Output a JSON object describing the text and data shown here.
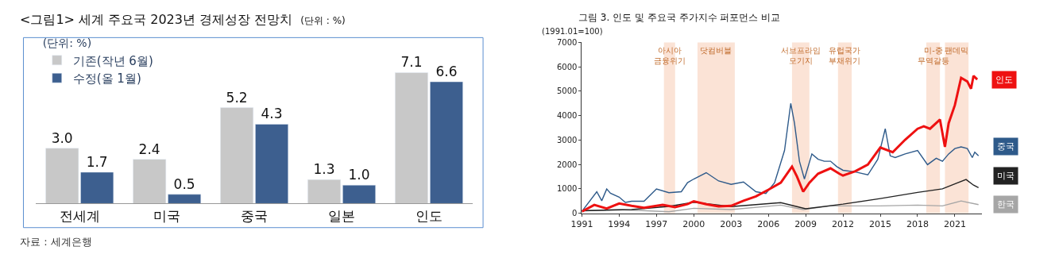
{
  "chart_data": [
    {
      "type": "bar",
      "title": "<그림1> 세계 주요국 2023년 경제성장 전망치",
      "subtitle": "(단위 : %)",
      "legend_title": "(단위: %)",
      "categories": [
        "전세계",
        "미국",
        "중국",
        "일본",
        "인도"
      ],
      "series": [
        {
          "name": "기존(작년 6월)",
          "color": "#c8c8c8",
          "values": [
            3.0,
            2.4,
            5.2,
            1.3,
            7.1
          ],
          "value_labels": [
            "3.0",
            "2.4",
            "5.2",
            "1.3",
            "7.1"
          ]
        },
        {
          "name": "수정(올 1월)",
          "color": "#3d5f8f",
          "values": [
            1.7,
            0.5,
            4.3,
            1.0,
            6.6
          ],
          "value_labels": [
            "1.7",
            "0.5",
            "4.3",
            "1.0",
            "6.6"
          ]
        }
      ],
      "legend": "top left",
      "grid": false,
      "annotations": [
        "자료 : 세계은행"
      ]
    },
    {
      "type": "line",
      "title": "그림 3. 인도 및 주요국 주가지수 퍼포먼스 비교",
      "ylabel": "(1991.01=100)",
      "xlim": [
        1991,
        2023.2
      ],
      "xticks": [
        1991,
        1994,
        1997,
        2000,
        2003,
        2006,
        2009,
        2012,
        2015,
        2018,
        2021
      ],
      "ylim": [
        0,
        7000
      ],
      "yticks": [
        0,
        1000,
        2000,
        3000,
        4000,
        5000,
        6000,
        7000
      ],
      "grid": false,
      "legend": "right",
      "marker": "none",
      "series": [
        {
          "name": "한국",
          "color": "#a6a6a6",
          "x": [
            1991,
            1994,
            1998,
            2000,
            2003,
            2007,
            2008.8,
            2011,
            2015,
            2018,
            2020,
            2021.5,
            2022.9
          ],
          "values": [
            100,
            150,
            60,
            200,
            150,
            330,
            150,
            300,
            300,
            330,
            300,
            500,
            350
          ]
        },
        {
          "name": "미국",
          "color": "#222222",
          "x": [
            1991,
            1995,
            1998,
            2000,
            2003,
            2007,
            2009,
            2012,
            2015,
            2018,
            2020,
            2021,
            2021.9,
            2022.5,
            2022.9
          ],
          "values": [
            100,
            150,
            280,
            450,
            270,
            430,
            180,
            370,
            600,
            850,
            1000,
            1200,
            1380,
            1150,
            1050
          ]
        },
        {
          "name": "중국",
          "color": "#2e5a8a",
          "x": [
            1991,
            1992.2,
            1992.6,
            1993,
            1993.3,
            1994,
            1994.5,
            1995,
            1996,
            1997,
            1998,
            1999,
            1999.5,
            2000,
            2001,
            2002,
            2003,
            2004,
            2005,
            2005.8,
            2006.5,
            2007.3,
            2007.8,
            2008.1,
            2008.5,
            2008.9,
            2009.5,
            2010,
            2010.5,
            2011,
            2011.5,
            2012,
            2013,
            2014,
            2014.8,
            2015.4,
            2015.8,
            2016.2,
            2017,
            2018,
            2018.8,
            2019.5,
            2020,
            2020.5,
            2021,
            2021.5,
            2022,
            2022.4,
            2022.6,
            2022.9
          ],
          "values": [
            70,
            880,
            510,
            990,
            820,
            660,
            440,
            490,
            490,
            990,
            840,
            880,
            1250,
            1400,
            1660,
            1320,
            1180,
            1280,
            880,
            810,
            1250,
            2570,
            4500,
            3690,
            2130,
            1400,
            2430,
            2210,
            2130,
            2130,
            1910,
            1760,
            1690,
            1570,
            2210,
            3460,
            2350,
            2280,
            2430,
            2570,
            1990,
            2250,
            2130,
            2430,
            2650,
            2720,
            2650,
            2280,
            2500,
            2350
          ]
        },
        {
          "name": "인도",
          "color": "#ee1111",
          "x": [
            1991,
            1992,
            1993,
            1994,
            1995,
            1996,
            1997.5,
            1998.5,
            1999.5,
            2000,
            2001,
            2002,
            2003,
            2004,
            2005,
            2006,
            2007,
            2007.9,
            2008.3,
            2008.8,
            2009.3,
            2010,
            2011,
            2011.7,
            2012,
            2013,
            2014,
            2015,
            2016,
            2017,
            2018,
            2018.5,
            2019,
            2019.8,
            2020.2,
            2020.5,
            2021,
            2021.5,
            2022,
            2022.3,
            2022.5,
            2022.8
          ],
          "values": [
            70,
            340,
            190,
            400,
            300,
            220,
            340,
            250,
            370,
            490,
            370,
            280,
            300,
            510,
            690,
            960,
            1250,
            1910,
            1500,
            880,
            1250,
            1620,
            1840,
            1620,
            1540,
            1720,
            1990,
            2690,
            2500,
            3010,
            3460,
            3560,
            3460,
            3840,
            2720,
            3690,
            4430,
            5550,
            5400,
            5100,
            5630,
            5480
          ]
        }
      ],
      "bands": [
        {
          "axis": "x",
          "from": 1997.6,
          "to": 1998.5,
          "label": "아시아\n금융위기",
          "color": "#fbe3d6"
        },
        {
          "axis": "x",
          "from": 2000.3,
          "to": 2003.3,
          "label": "닷컴버블",
          "color": "#fbe3d6"
        },
        {
          "axis": "x",
          "from": 2007.9,
          "to": 2009.3,
          "label": "서브프라임\n모기지",
          "color": "#fbe3d6"
        },
        {
          "axis": "x",
          "from": 2011.6,
          "to": 2012.7,
          "label": "유럽국가\n부채위기",
          "color": "#fbe3d6"
        },
        {
          "axis": "x",
          "from": 2018.7,
          "to": 2019.8,
          "label": "미-중\n무역갈등",
          "color": "#fbe3d6"
        },
        {
          "axis": "x",
          "from": 2020.2,
          "to": 2022.1,
          "label": "팬데믹",
          "color": "#fbe3d6"
        }
      ]
    }
  ]
}
